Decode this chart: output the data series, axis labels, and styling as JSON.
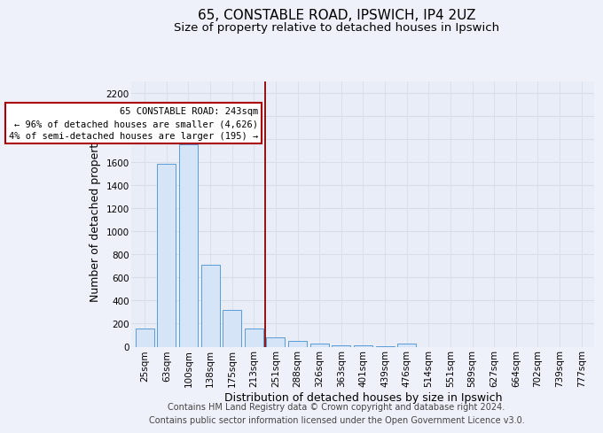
{
  "title1": "65, CONSTABLE ROAD, IPSWICH, IP4 2UZ",
  "title2": "Size of property relative to detached houses in Ipswich",
  "xlabel": "Distribution of detached houses by size in Ipswich",
  "ylabel": "Number of detached properties",
  "categories": [
    "25sqm",
    "63sqm",
    "100sqm",
    "138sqm",
    "175sqm",
    "213sqm",
    "251sqm",
    "288sqm",
    "326sqm",
    "363sqm",
    "401sqm",
    "439sqm",
    "476sqm",
    "514sqm",
    "551sqm",
    "589sqm",
    "627sqm",
    "664sqm",
    "702sqm",
    "739sqm",
    "777sqm"
  ],
  "values": [
    160,
    1580,
    1750,
    710,
    315,
    160,
    80,
    50,
    30,
    15,
    10,
    5,
    25,
    0,
    0,
    0,
    0,
    0,
    0,
    0,
    0
  ],
  "bar_color_face": "#d6e4f7",
  "bar_color_edge": "#5b9bd5",
  "red_line_x": 5.5,
  "ylim_max": 2300,
  "ytick_max": 2200,
  "ytick_step": 200,
  "annotation_line1": "65 CONSTABLE ROAD: 243sqm",
  "annotation_line2": "← 96% of detached houses are smaller (4,626)",
  "annotation_line3": "4% of semi-detached houses are larger (195) →",
  "annotation_box_facecolor": "#ffffff",
  "annotation_box_edgecolor": "#aa0000",
  "red_line_color": "#8b0000",
  "footer1": "Contains HM Land Registry data © Crown copyright and database right 2024.",
  "footer2": "Contains public sector information licensed under the Open Government Licence v3.0.",
  "background_color": "#eef1f9",
  "grid_color": "#d8dde8",
  "plot_bg_color": "#e8edf8",
  "title1_fontsize": 11,
  "title2_fontsize": 9.5,
  "axis_label_fontsize": 9,
  "tick_fontsize": 7.5,
  "annotation_fontsize": 7.5,
  "footer_fontsize": 7
}
